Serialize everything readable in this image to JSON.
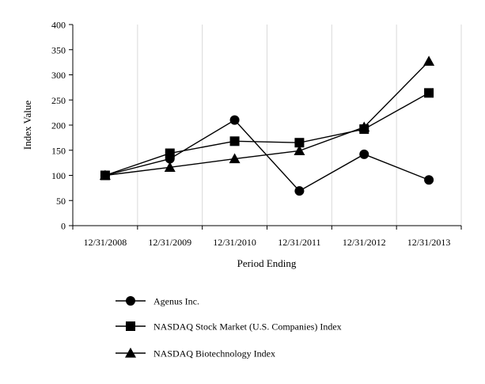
{
  "chart_data": {
    "type": "line",
    "title": "",
    "xlabel": "Period Ending",
    "ylabel": "Index Value",
    "categories": [
      "12/31/2008",
      "12/31/2009",
      "12/31/2010",
      "12/31/2011",
      "12/31/2012",
      "12/31/2013"
    ],
    "ylim": [
      0,
      400
    ],
    "yticks": [
      0,
      50,
      100,
      150,
      200,
      250,
      300,
      350,
      400
    ],
    "grid": "vertical",
    "legend_position": "bottom",
    "series": [
      {
        "name": "Agenus Inc.",
        "marker": "circle",
        "color": "#000000",
        "values": [
          100,
          133,
          210,
          69,
          142,
          91
        ]
      },
      {
        "name": "NASDAQ Stock Market (U.S. Companies) Index",
        "marker": "square",
        "color": "#000000",
        "values": [
          100,
          144,
          168,
          165,
          192,
          264
        ]
      },
      {
        "name": "NASDAQ Biotechnology Index",
        "marker": "triangle",
        "color": "#000000",
        "values": [
          100,
          116,
          133,
          149,
          196,
          327
        ]
      }
    ]
  }
}
